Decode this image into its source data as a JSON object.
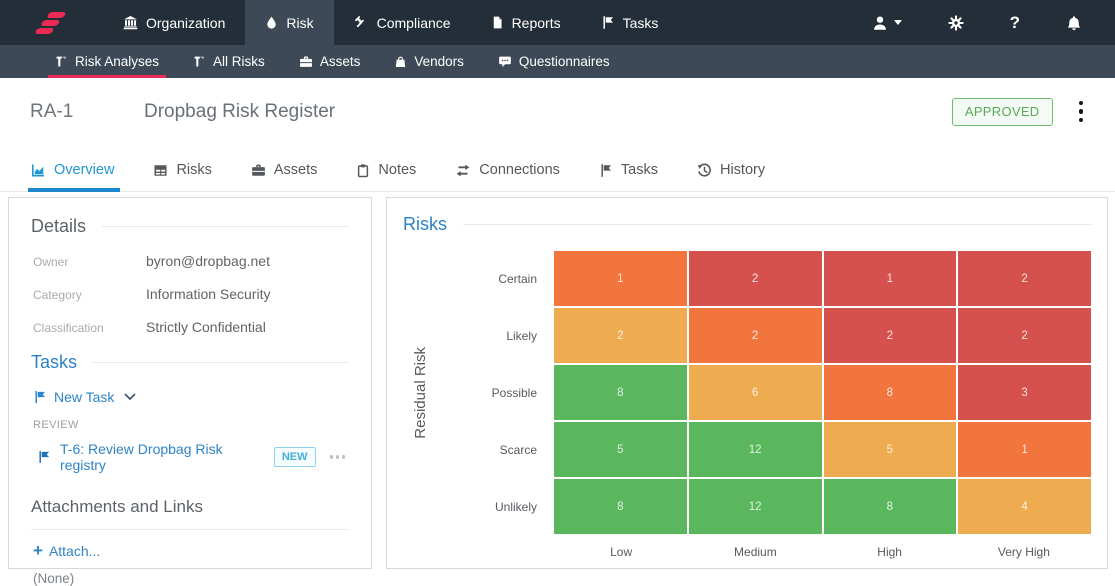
{
  "brand": {
    "accent": "#ec2a55",
    "navbar_dark": "#242e39",
    "navbar_light": "#3d4956",
    "link_blue": "#2e84c6",
    "tab_blue": "#2196d3"
  },
  "topnav": {
    "items": [
      {
        "label": "Organization",
        "icon": "bank-icon",
        "active": false
      },
      {
        "label": "Risk",
        "icon": "droplet-icon",
        "active": true
      },
      {
        "label": "Compliance",
        "icon": "gavel-icon",
        "active": false
      },
      {
        "label": "Reports",
        "icon": "report-icon",
        "active": false
      },
      {
        "label": "Tasks",
        "icon": "flag-icon",
        "active": false
      }
    ],
    "right_icons": [
      "user-icon",
      "gear-icon",
      "help-icon",
      "bell-icon"
    ],
    "help_glyph": "?"
  },
  "subnav": {
    "items": [
      {
        "label": "Risk Analyses",
        "icon": "tsquare-icon",
        "active": true
      },
      {
        "label": "All Risks",
        "icon": "tsquare-icon",
        "active": false
      },
      {
        "label": "Assets",
        "icon": "briefcase-icon",
        "active": false
      },
      {
        "label": "Vendors",
        "icon": "bag-icon",
        "active": false
      },
      {
        "label": "Questionnaires",
        "icon": "chat-icon",
        "active": false
      }
    ]
  },
  "header": {
    "record_id": "RA-1",
    "title": "Dropbag Risk Register",
    "status": "APPROVED",
    "status_color": "#5cb85c"
  },
  "tabs": [
    {
      "label": "Overview",
      "icon": "chart-area-icon",
      "active": true
    },
    {
      "label": "Risks",
      "icon": "table-icon",
      "active": false
    },
    {
      "label": "Assets",
      "icon": "briefcase-icon",
      "active": false
    },
    {
      "label": "Notes",
      "icon": "clipboard-icon",
      "active": false
    },
    {
      "label": "Connections",
      "icon": "swap-arrows-icon",
      "active": false
    },
    {
      "label": "Tasks",
      "icon": "flag-icon",
      "active": false
    },
    {
      "label": "History",
      "icon": "history-icon",
      "active": false
    }
  ],
  "details": {
    "heading": "Details",
    "fields": [
      {
        "label": "Owner",
        "value": "byron@dropbag.net"
      },
      {
        "label": "Category",
        "value": "Information Security"
      },
      {
        "label": "Classification",
        "value": "Strictly Confidential"
      }
    ]
  },
  "tasks_section": {
    "heading": "Tasks",
    "new_task_label": "New Task",
    "group_label": "REVIEW",
    "task_label": "T-6: Review Dropbag Risk registry",
    "badge": "NEW"
  },
  "attachments": {
    "heading": "Attachments and Links",
    "attach_label": "Attach...",
    "empty_label": "(None)"
  },
  "risks_panel": {
    "heading": "Risks"
  },
  "chart_data": {
    "type": "heatmap",
    "title": "Risks",
    "ylabel": "Residual Risk",
    "row_labels": [
      "Certain",
      "Likely",
      "Possible",
      "Scarce",
      "Unlikely"
    ],
    "col_labels": [
      "Low",
      "Medium",
      "High",
      "Very High"
    ],
    "values": [
      [
        1,
        2,
        1,
        2
      ],
      [
        2,
        2,
        2,
        2
      ],
      [
        8,
        6,
        8,
        3
      ],
      [
        5,
        12,
        5,
        1
      ],
      [
        8,
        12,
        8,
        4
      ]
    ],
    "cell_colors": [
      [
        "orange",
        "red",
        "red",
        "red"
      ],
      [
        "amber",
        "orange",
        "red",
        "red"
      ],
      [
        "green",
        "amber",
        "orange",
        "red"
      ],
      [
        "green",
        "green",
        "amber",
        "orange"
      ],
      [
        "green",
        "green",
        "green",
        "amber"
      ]
    ],
    "palette": {
      "green": "#5bb75e",
      "amber": "#eeab50",
      "orange": "#f1753d",
      "red": "#d5514e"
    },
    "legend": false
  }
}
